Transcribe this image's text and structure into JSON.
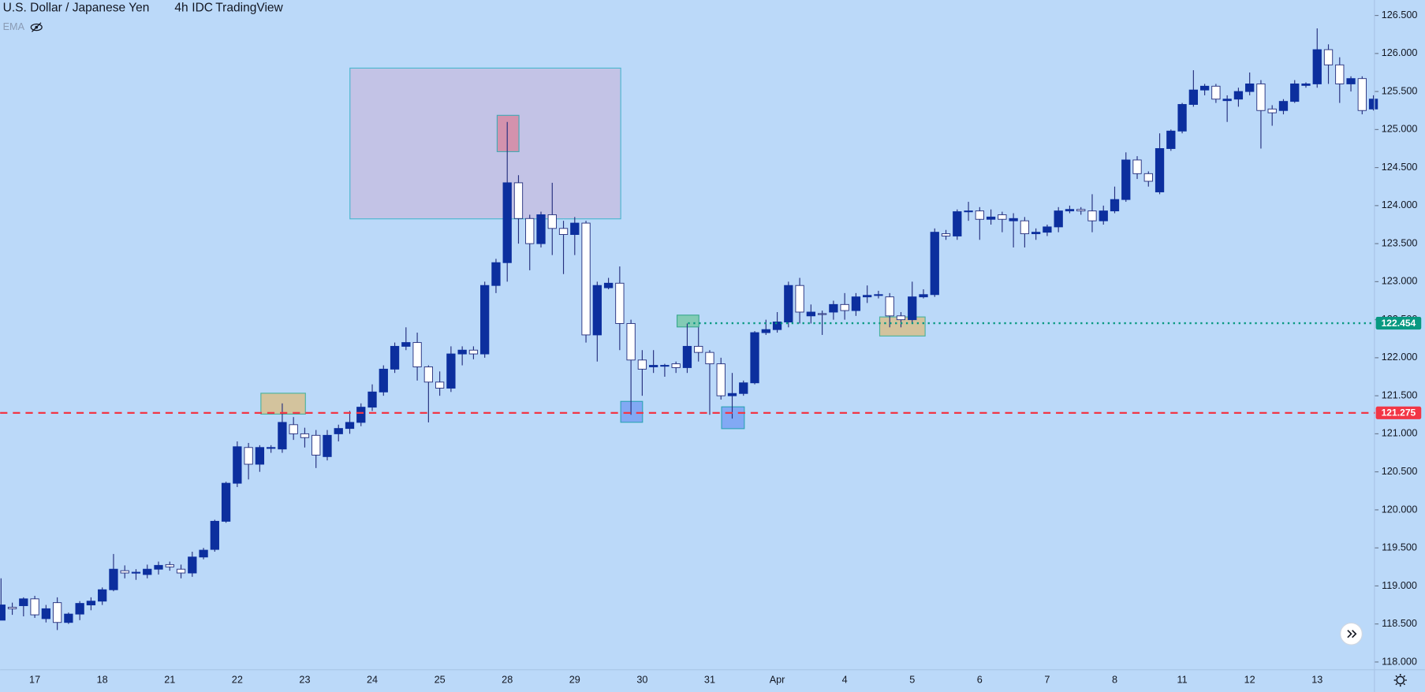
{
  "chart_data": {
    "type": "candlestick",
    "title": "U.S. Dollar / Japanese Yen",
    "interval": "4h",
    "source": "IDC",
    "platform": "TradingView",
    "indicator": "EMA",
    "up_color": "#0c2f9e",
    "down_color": "#ffffff",
    "wick_color": "#26307e",
    "categories": [
      null,
      null,
      null,
      "17",
      null,
      null,
      null,
      null,
      null,
      "18",
      null,
      null,
      null,
      null,
      null,
      "21",
      null,
      null,
      null,
      null,
      null,
      "22",
      null,
      null,
      null,
      null,
      null,
      "23",
      null,
      null,
      null,
      null,
      null,
      "24",
      null,
      null,
      null,
      null,
      null,
      "25",
      null,
      null,
      null,
      null,
      null,
      "28",
      null,
      null,
      null,
      null,
      null,
      "29",
      null,
      null,
      null,
      null,
      null,
      "30",
      null,
      null,
      null,
      null,
      null,
      "31",
      null,
      null,
      null,
      null,
      null,
      "Apr",
      null,
      null,
      null,
      null,
      null,
      "4",
      null,
      null,
      null,
      null,
      null,
      "5",
      null,
      null,
      null,
      null,
      null,
      "6",
      null,
      null,
      null,
      null,
      null,
      "7",
      null,
      null,
      null,
      null,
      null,
      "8",
      null,
      null,
      null,
      null,
      null,
      "11",
      null,
      null,
      null,
      null,
      null,
      "12",
      null,
      null,
      null,
      null,
      null,
      "13",
      null,
      null,
      null,
      null,
      null
    ],
    "open": [
      118.55,
      118.72,
      118.74,
      118.83,
      118.57,
      118.78,
      118.52,
      118.63,
      118.75,
      118.8,
      118.95,
      119.2,
      119.17,
      119.15,
      119.22,
      119.28,
      119.22,
      119.17,
      119.38,
      119.48,
      119.85,
      120.35,
      120.82,
      120.6,
      120.82,
      120.8,
      121.12,
      121.0,
      120.98,
      120.7,
      121.0,
      121.07,
      121.15,
      121.35,
      121.55,
      121.85,
      122.15,
      122.2,
      121.88,
      121.68,
      121.6,
      122.05,
      122.1,
      122.05,
      122.95,
      123.25,
      124.3,
      123.83,
      123.5,
      123.88,
      123.7,
      123.62,
      123.77,
      122.3,
      122.92,
      122.98,
      122.45,
      121.97,
      121.88,
      121.9,
      121.92,
      121.87,
      122.15,
      122.07,
      121.92,
      121.5,
      121.53,
      121.67,
      122.33,
      122.37,
      122.47,
      122.95,
      122.55,
      122.58,
      122.6,
      122.7,
      122.62,
      122.8,
      122.82,
      122.8,
      122.55,
      122.5,
      122.8,
      122.83,
      123.63,
      123.6,
      123.92,
      123.93,
      123.82,
      123.88,
      123.8,
      123.8,
      123.63,
      123.65,
      123.72,
      123.93,
      123.95,
      123.93,
      123.8,
      123.93,
      124.08,
      124.6,
      124.42,
      124.18,
      124.75,
      124.98,
      125.33,
      125.52,
      125.57,
      125.38,
      125.4,
      125.5,
      125.6,
      125.27,
      125.25,
      125.37,
      125.58,
      125.6,
      126.05,
      125.85,
      125.6,
      125.67,
      125.27
    ],
    "high": [
      119.1,
      118.78,
      118.85,
      118.87,
      118.75,
      118.85,
      118.65,
      118.8,
      118.85,
      118.98,
      119.42,
      119.27,
      119.22,
      119.28,
      119.32,
      119.32,
      119.28,
      119.45,
      119.5,
      119.87,
      120.37,
      120.9,
      120.88,
      120.85,
      120.85,
      121.4,
      121.22,
      121.08,
      121.05,
      121.05,
      121.12,
      121.3,
      121.4,
      121.65,
      121.9,
      122.2,
      122.4,
      122.33,
      121.9,
      121.82,
      122.15,
      122.15,
      122.15,
      123.0,
      123.3,
      125.1,
      124.4,
      123.88,
      123.92,
      124.3,
      123.8,
      123.85,
      123.8,
      123.0,
      123.05,
      123.2,
      122.5,
      122.1,
      122.1,
      121.92,
      121.95,
      122.45,
      122.4,
      122.1,
      122.0,
      121.8,
      121.7,
      122.35,
      122.5,
      122.6,
      123.0,
      123.05,
      122.7,
      122.62,
      122.75,
      122.85,
      122.85,
      122.95,
      122.88,
      122.85,
      122.6,
      123.0,
      122.9,
      123.7,
      123.68,
      123.95,
      124.05,
      123.98,
      123.95,
      123.92,
      123.9,
      123.85,
      123.7,
      123.75,
      123.98,
      124.0,
      123.98,
      124.15,
      124.0,
      124.25,
      124.7,
      124.65,
      124.45,
      124.95,
      125.0,
      125.35,
      125.78,
      125.6,
      125.6,
      125.45,
      125.55,
      125.75,
      125.65,
      125.32,
      125.4,
      125.65,
      125.62,
      126.33,
      126.12,
      125.95,
      125.7,
      125.7,
      125.45
    ],
    "low": [
      118.55,
      118.62,
      118.6,
      118.58,
      118.52,
      118.42,
      118.5,
      118.55,
      118.68,
      118.75,
      118.93,
      119.1,
      119.08,
      119.1,
      119.15,
      119.2,
      119.1,
      119.12,
      119.35,
      119.45,
      119.83,
      120.3,
      120.4,
      120.5,
      120.75,
      120.75,
      120.92,
      120.82,
      120.55,
      120.65,
      120.9,
      121.0,
      121.1,
      121.3,
      121.5,
      121.8,
      122.1,
      121.7,
      121.15,
      121.5,
      121.55,
      121.9,
      121.98,
      122.0,
      122.85,
      123.0,
      123.5,
      123.15,
      123.45,
      123.35,
      123.1,
      123.35,
      122.2,
      121.95,
      122.9,
      122.1,
      121.25,
      121.5,
      121.8,
      121.75,
      121.8,
      121.8,
      121.95,
      121.25,
      121.45,
      121.2,
      121.5,
      121.65,
      122.3,
      122.33,
      122.4,
      122.45,
      122.45,
      122.3,
      122.5,
      122.5,
      122.55,
      122.72,
      122.78,
      122.4,
      122.4,
      122.45,
      122.78,
      122.8,
      123.55,
      123.55,
      123.8,
      123.55,
      123.75,
      123.65,
      123.45,
      123.45,
      123.55,
      123.6,
      123.65,
      123.9,
      123.88,
      123.65,
      123.75,
      123.9,
      124.05,
      124.35,
      124.25,
      124.15,
      124.72,
      124.95,
      125.3,
      125.45,
      125.35,
      125.1,
      125.3,
      125.45,
      124.75,
      125.05,
      125.2,
      125.35,
      125.55,
      125.55,
      125.6,
      125.35,
      125.5,
      125.2,
      125.25
    ],
    "close": [
      118.75,
      118.7,
      118.83,
      118.62,
      118.7,
      118.52,
      118.63,
      118.77,
      118.8,
      118.95,
      119.22,
      119.17,
      119.18,
      119.22,
      119.27,
      119.25,
      119.17,
      119.38,
      119.47,
      119.85,
      120.35,
      120.83,
      120.6,
      120.82,
      120.82,
      121.15,
      121.0,
      120.95,
      120.72,
      120.98,
      121.07,
      121.15,
      121.35,
      121.55,
      121.85,
      122.15,
      122.2,
      121.88,
      121.68,
      121.6,
      122.05,
      122.1,
      122.05,
      122.95,
      123.25,
      124.3,
      123.83,
      123.5,
      123.88,
      123.7,
      123.62,
      123.77,
      122.3,
      122.95,
      122.98,
      122.45,
      121.97,
      121.85,
      121.9,
      121.9,
      121.87,
      122.15,
      122.07,
      121.92,
      121.5,
      121.53,
      121.67,
      122.33,
      122.37,
      122.47,
      122.95,
      122.6,
      122.6,
      122.57,
      122.7,
      122.62,
      122.8,
      122.82,
      122.83,
      122.55,
      122.5,
      122.8,
      122.83,
      123.65,
      123.6,
      123.92,
      123.93,
      123.82,
      123.85,
      123.82,
      123.83,
      123.63,
      123.65,
      123.72,
      123.93,
      123.95,
      123.93,
      123.8,
      123.93,
      124.08,
      124.6,
      124.42,
      124.32,
      124.75,
      124.98,
      125.33,
      125.52,
      125.57,
      125.4,
      125.4,
      125.5,
      125.6,
      125.25,
      125.22,
      125.37,
      125.6,
      125.6,
      126.05,
      125.85,
      125.6,
      125.67,
      125.25,
      125.4
    ],
    "ylim": [
      117.904,
      126.703
    ],
    "yticks": [
      {
        "value": 118,
        "label": "118.000"
      },
      {
        "value": 118.5,
        "label": "118.500"
      },
      {
        "value": 119,
        "label": "119.000"
      },
      {
        "value": 119.5,
        "label": "119.500"
      },
      {
        "value": 120,
        "label": "120.000"
      },
      {
        "value": 120.5,
        "label": "120.500"
      },
      {
        "value": 121,
        "label": "121.000"
      },
      {
        "value": 121.5,
        "label": "121.500"
      },
      {
        "value": 122,
        "label": "122.000"
      },
      {
        "value": 122.5,
        "label": "122.500"
      },
      {
        "value": 123,
        "label": "123.000"
      },
      {
        "value": 123.5,
        "label": "123.500"
      },
      {
        "value": 124,
        "label": "124.000"
      },
      {
        "value": 124.5,
        "label": "124.500"
      },
      {
        "value": 125,
        "label": "125.000"
      },
      {
        "value": 125.5,
        "label": "125.500"
      },
      {
        "value": 126,
        "label": "126.000"
      },
      {
        "value": 126.5,
        "label": "126.500"
      }
    ],
    "hlines": [
      {
        "value": 121.275,
        "color": "#f23645",
        "style": "dashed"
      },
      {
        "value": 122.454,
        "color": "#089981",
        "style": "dotted"
      }
    ]
  }
}
